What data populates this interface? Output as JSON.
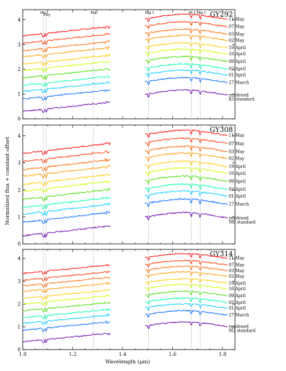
{
  "chart_data": {
    "type": "line",
    "xlabel": "Wavelength (μm)",
    "ylabel": "Normalized flux + constant offset",
    "xlim": [
      1.0,
      1.85
    ],
    "xticks": [
      "1.0",
      "1.2",
      "1.4",
      "1.6",
      "1.8"
    ],
    "yticks": [
      "0",
      "1",
      "2",
      "3",
      "4"
    ],
    "line_ids": [
      {
        "label": "He I",
        "x": 1.083
      },
      {
        "label": "Paγ",
        "x": 1.094
      },
      {
        "label": "Paβ",
        "x": 1.282
      },
      {
        "label": "Mg I",
        "x": 1.504
      },
      {
        "label": "Al I",
        "x": 1.675
      },
      {
        "label": "Mg I",
        "x": 1.711
      }
    ],
    "colors": [
      "#ff0000",
      "#ff3300",
      "#ff6600",
      "#ff9900",
      "#ffcc00",
      "#ccff00",
      "#44dd00",
      "#00ffaa",
      "#00ccff",
      "#0066ff",
      "#0000dd",
      "#6600aa"
    ],
    "panels": [
      {
        "title": "GY292",
        "ylim": [
          0,
          4.4
        ],
        "series": [
          {
            "name": "11 May",
            "offset": 3.6
          },
          {
            "name": "07 May",
            "offset": 3.3
          },
          {
            "name": "03 May",
            "offset": 3.0
          },
          {
            "name": "02 May",
            "offset": 2.75
          },
          {
            "name": "19 April",
            "offset": 2.45
          },
          {
            "name": "16 April",
            "offset": 2.2
          },
          {
            "name": "09 April",
            "offset": 1.9
          },
          {
            "name": "02 April",
            "offset": 1.6
          },
          {
            "name": "01 April",
            "offset": 1.35
          },
          {
            "name": "27 March",
            "offset": 1.05
          },
          {
            "name": "reddened\nK5 standard",
            "offset": 0.55
          }
        ]
      },
      {
        "title": "GY308",
        "ylim": [
          0,
          4.4
        ],
        "series": [
          {
            "name": "11 May",
            "offset": 3.6
          },
          {
            "name": "07 May",
            "offset": 3.3
          },
          {
            "name": "03 May",
            "offset": 3.0
          },
          {
            "name": "02 May",
            "offset": 2.75
          },
          {
            "name": "19 April",
            "offset": 2.45
          },
          {
            "name": "16 April",
            "offset": 2.2
          },
          {
            "name": "09 April",
            "offset": 1.9
          },
          {
            "name": "02 April",
            "offset": 1.6
          },
          {
            "name": "01 April",
            "offset": 1.35
          },
          {
            "name": "27 March",
            "offset": 1.05
          },
          {
            "name": "reddened\nM0 standard",
            "offset": 0.55
          }
        ]
      },
      {
        "title": "GY314",
        "ylim": [
          0,
          4.4
        ],
        "series": [
          {
            "name": "11 May",
            "offset": 3.6
          },
          {
            "name": "07 May",
            "offset": 3.3
          },
          {
            "name": "03 May",
            "offset": 3.05
          },
          {
            "name": "02 May",
            "offset": 2.8
          },
          {
            "name": "19 April",
            "offset": 2.5
          },
          {
            "name": "16 April",
            "offset": 2.25
          },
          {
            "name": "09 April",
            "offset": 1.95
          },
          {
            "name": "02 April",
            "offset": 1.65
          },
          {
            "name": "01 April",
            "offset": 1.4
          },
          {
            "name": "27 March",
            "offset": 1.1
          },
          {
            "name": "reddened\nM2 standard",
            "offset": 0.6
          }
        ]
      }
    ]
  }
}
